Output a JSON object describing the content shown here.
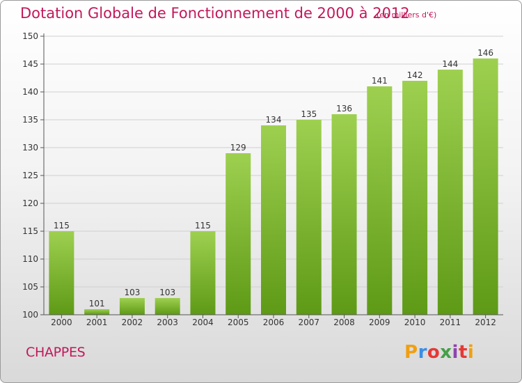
{
  "header": {
    "title": "Dotation Globale de Fonctionnement de 2000 à 2012",
    "unit": "(en milliers d'€)"
  },
  "footer": {
    "commune": "CHAPPES",
    "logo_text": "Proxiti"
  },
  "colors": {
    "title": "#c2185b",
    "bar_top": "#9ed050",
    "bar_bottom": "#5e9a16",
    "axis": "#555555",
    "grid": "#cfcfcf"
  },
  "chart_data": {
    "type": "bar",
    "categories": [
      "2000",
      "2001",
      "2002",
      "2003",
      "2004",
      "2005",
      "2006",
      "2007",
      "2008",
      "2009",
      "2010",
      "2011",
      "2012"
    ],
    "values": [
      115,
      101,
      103,
      103,
      115,
      129,
      134,
      135,
      136,
      141,
      142,
      144,
      146
    ],
    "yticks": [
      100,
      105,
      110,
      115,
      120,
      125,
      130,
      135,
      140,
      145,
      150
    ],
    "ylim": [
      100,
      150
    ],
    "grid": true,
    "title": "Dotation Globale de Fonctionnement de 2000 à 2012",
    "xlabel": "",
    "ylabel": ""
  }
}
